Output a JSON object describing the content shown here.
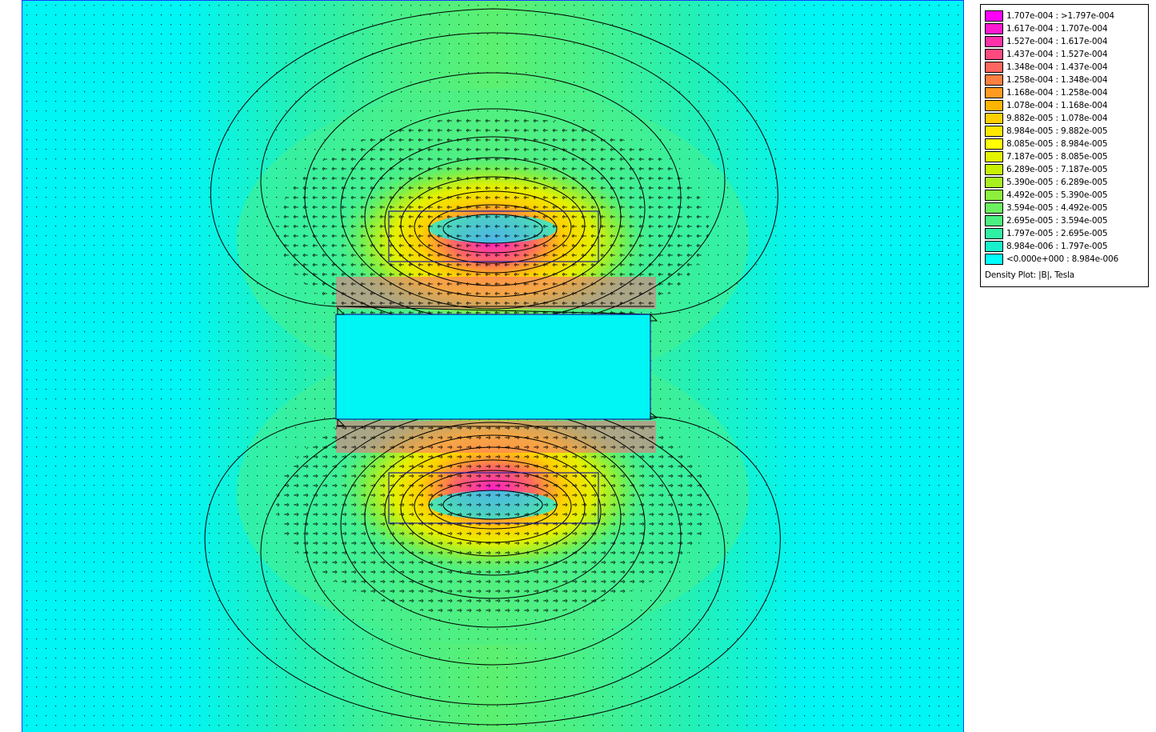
{
  "plot": {
    "colors": {
      "background": "#00f5f5",
      "level1": "#22f0b8",
      "level2": "#48f08a",
      "level3": "#7cf04a",
      "level4": "#b4f020",
      "level5": "#e4f000",
      "level6": "#ffd000",
      "level7": "#ff9a20",
      "level8": "#ff5a70",
      "level9": "#ff20c8",
      "outline": "#1a1a9a",
      "contour": "#000000"
    }
  },
  "legend": {
    "title": "Density Plot: |B|, Tesla",
    "items": [
      {
        "label": "1.707e-004 : >1.797e-004",
        "color": "#ff00ff"
      },
      {
        "label": "1.617e-004 : 1.707e-004",
        "color": "#ff1ad2"
      },
      {
        "label": "1.527e-004 : 1.617e-004",
        "color": "#ff30a8"
      },
      {
        "label": "1.437e-004 : 1.527e-004",
        "color": "#ff4a80"
      },
      {
        "label": "1.348e-004 : 1.437e-004",
        "color": "#ff6660"
      },
      {
        "label": "1.258e-004 : 1.348e-004",
        "color": "#ff8040"
      },
      {
        "label": "1.168e-004 : 1.258e-004",
        "color": "#ff9a20"
      },
      {
        "label": "1.078e-004 : 1.168e-004",
        "color": "#ffb400"
      },
      {
        "label": "9.882e-005 : 1.078e-004",
        "color": "#ffd000"
      },
      {
        "label": "8.984e-005 : 9.882e-005",
        "color": "#ffe800"
      },
      {
        "label": "8.085e-005 : 8.984e-005",
        "color": "#ffff00"
      },
      {
        "label": "7.187e-005 : 8.085e-005",
        "color": "#e4f400"
      },
      {
        "label": "6.289e-005 : 7.187e-005",
        "color": "#c8f000"
      },
      {
        "label": "5.390e-005 : 6.289e-005",
        "color": "#aaf020"
      },
      {
        "label": "4.492e-005 : 5.390e-005",
        "color": "#8cf03c"
      },
      {
        "label": "3.594e-005 : 4.492e-005",
        "color": "#6cf060"
      },
      {
        "label": "2.695e-005 : 3.594e-005",
        "color": "#4cf080"
      },
      {
        "label": "1.797e-005 : 2.695e-005",
        "color": "#30f0a4"
      },
      {
        "label": "8.984e-006 : 1.797e-005",
        "color": "#18f0cc"
      },
      {
        "label": "<0.000e+000 : 8.984e-006",
        "color": "#00ffff"
      }
    ]
  }
}
